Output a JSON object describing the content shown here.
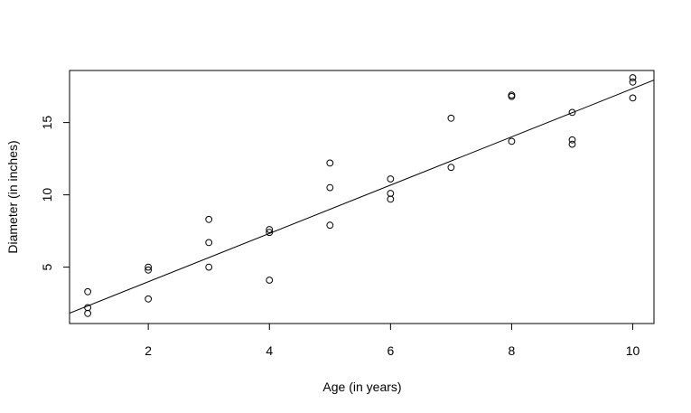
{
  "chart_data": {
    "type": "scatter",
    "title": "",
    "xlabel": "Age (in years)",
    "ylabel": "Diameter (in inches)",
    "xlim": [
      0.7,
      10.35
    ],
    "ylim": [
      1.1,
      18.6
    ],
    "xticks": [
      2,
      4,
      6,
      8,
      10
    ],
    "xtick_labels": [
      "2",
      "4",
      "6",
      "8",
      "10"
    ],
    "yticks": [
      5,
      10,
      15
    ],
    "ytick_labels": [
      "5",
      "10",
      "15"
    ],
    "grid": false,
    "series": [
      {
        "marker": "open-circle",
        "points": [
          [
            1,
            3.3
          ],
          [
            1,
            2.2
          ],
          [
            1,
            1.8
          ],
          [
            2,
            5.0
          ],
          [
            2,
            4.8
          ],
          [
            2,
            2.8
          ],
          [
            3,
            8.3
          ],
          [
            3,
            6.7
          ],
          [
            3,
            5.0
          ],
          [
            4,
            7.6
          ],
          [
            4,
            7.4
          ],
          [
            4,
            4.1
          ],
          [
            5,
            12.2
          ],
          [
            5,
            10.5
          ],
          [
            5,
            7.9
          ],
          [
            6,
            11.1
          ],
          [
            6,
            10.1
          ],
          [
            6,
            9.7
          ],
          [
            7,
            15.3
          ],
          [
            7,
            11.9
          ],
          [
            8,
            16.9
          ],
          [
            8,
            16.8
          ],
          [
            8,
            13.7
          ],
          [
            9,
            15.7
          ],
          [
            9,
            13.8
          ],
          [
            9,
            13.5
          ],
          [
            10,
            18.1
          ],
          [
            10,
            17.8
          ],
          [
            10,
            16.7
          ]
        ]
      }
    ],
    "fit_line": {
      "intercept": 0.65,
      "slope": 1.67
    }
  }
}
